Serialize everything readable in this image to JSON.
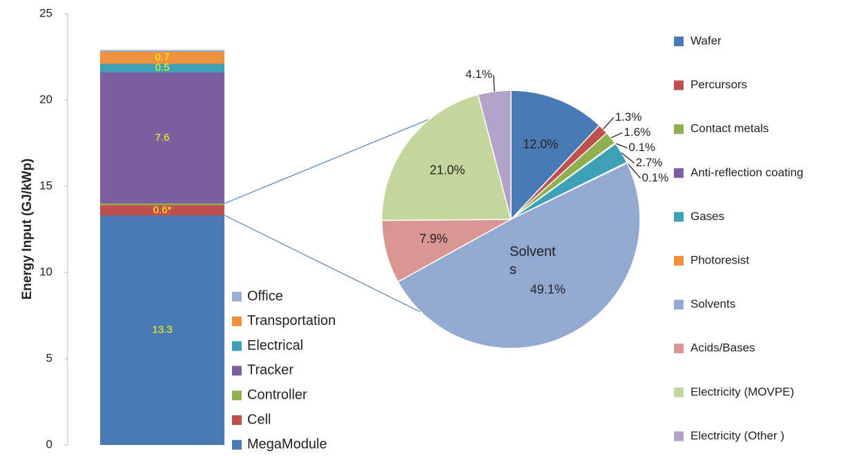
{
  "chart_data": [
    {
      "type": "bar",
      "stacked": true,
      "ylabel": "Energy Input (GJ/kWp)",
      "categories": [
        null
      ],
      "series": [
        {
          "name": "MegaModule",
          "color": "#4a7ab5",
          "values": [
            13.3
          ]
        },
        {
          "name": "Cell",
          "color": "#c0504d",
          "values": [
            0.6
          ],
          "value_labels": [
            "0.6*"
          ]
        },
        {
          "name": "Controller",
          "color": "#8fb04e",
          "values": [
            0.1
          ]
        },
        {
          "name": "Tracker",
          "color": "#7b5fa0",
          "values": [
            7.6
          ]
        },
        {
          "name": "Electrical",
          "color": "#3fa0b5",
          "values": [
            0.5
          ]
        },
        {
          "name": "Transportation",
          "color": "#f0923d",
          "values": [
            0.7
          ]
        },
        {
          "name": "Office",
          "color": "#9aaed6",
          "values": [
            0.1
          ]
        }
      ],
      "ylim": [
        0,
        25
      ],
      "yticks": [
        0,
        5,
        10,
        15,
        20,
        25
      ],
      "grid": false,
      "legend": "lower right"
    },
    {
      "type": "pie",
      "categories": [
        "Wafer",
        "Percursors",
        "Contact metals",
        "Anti-reflection coating",
        "Gases",
        "Photoresist",
        "Solvents",
        "Acids/Bases",
        "Electricity (MOVPE)",
        "Electricity (Other )"
      ],
      "values": [
        12.0,
        1.3,
        1.6,
        0.1,
        2.7,
        0.1,
        49.1,
        7.9,
        21.0,
        4.1
      ],
      "value_labels": [
        "12.0%",
        "1.3%",
        "1.6%",
        "0.1%",
        "2.7%",
        "0.1%",
        "49.1%",
        "7.9%",
        "21.0%",
        "4.1%"
      ],
      "colors": [
        "#4a7ab5",
        "#c0504d",
        "#8fb04e",
        "#7b5fa0",
        "#3fa0b5",
        "#f0923d",
        "#93a9d2",
        "#d99694",
        "#c3d69b",
        "#b3a2c7"
      ],
      "annotation": "Solvent s",
      "legend": "right"
    }
  ]
}
